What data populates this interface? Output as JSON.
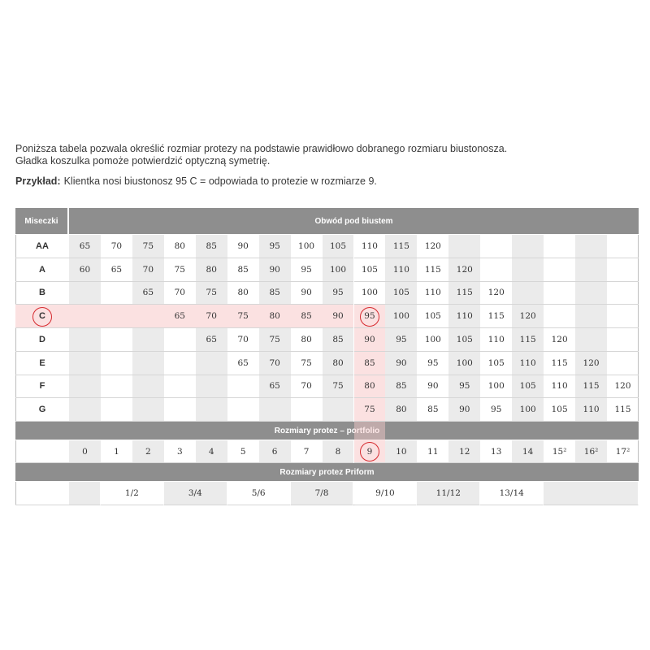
{
  "intro": {
    "line1": "Poniższa tabela pozwala określić rozmiar protezy na podstawie prawidłowo dobranego rozmiaru biustonosza.",
    "line2": "Gładka koszulka pomoże potwierdzić optyczną symetrię.",
    "example_label": "Przykład:",
    "example_text": "Klientka nosi biustonosz 95 C = odpowiada to protezie w rozmiarze 9."
  },
  "table": {
    "cup_header": "Miseczki",
    "band_header": "Obwód pod biustem",
    "rows": [
      {
        "cup": "AA",
        "values": [
          65,
          70,
          75,
          80,
          85,
          90,
          95,
          100,
          105,
          110,
          115,
          120,
          null,
          null,
          null,
          null,
          null,
          null
        ]
      },
      {
        "cup": "A",
        "values": [
          60,
          65,
          70,
          75,
          80,
          85,
          90,
          95,
          100,
          105,
          110,
          115,
          120,
          null,
          null,
          null,
          null,
          null
        ]
      },
      {
        "cup": "B",
        "values": [
          null,
          null,
          65,
          70,
          75,
          80,
          85,
          90,
          95,
          100,
          105,
          110,
          115,
          120,
          null,
          null,
          null,
          null
        ]
      },
      {
        "cup": "C",
        "values": [
          null,
          null,
          null,
          65,
          70,
          75,
          80,
          85,
          90,
          95,
          100,
          105,
          110,
          115,
          120,
          null,
          null,
          null
        ]
      },
      {
        "cup": "D",
        "values": [
          null,
          null,
          null,
          null,
          65,
          70,
          75,
          80,
          85,
          90,
          95,
          100,
          105,
          110,
          115,
          120,
          null,
          null
        ]
      },
      {
        "cup": "E",
        "values": [
          null,
          null,
          null,
          null,
          null,
          65,
          70,
          75,
          80,
          85,
          90,
          95,
          100,
          105,
          110,
          115,
          120,
          null
        ]
      },
      {
        "cup": "F",
        "values": [
          null,
          null,
          null,
          null,
          null,
          null,
          65,
          70,
          75,
          80,
          85,
          90,
          95,
          100,
          105,
          110,
          115,
          120
        ]
      },
      {
        "cup": "G",
        "values": [
          null,
          null,
          null,
          null,
          null,
          null,
          null,
          null,
          null,
          75,
          80,
          85,
          90,
          95,
          100,
          105,
          110,
          115
        ]
      }
    ],
    "portfolio_header": "Rozmiary protez – portfolio",
    "portfolio": [
      0,
      1,
      2,
      3,
      4,
      5,
      6,
      7,
      8,
      9,
      10,
      11,
      12,
      13,
      14,
      "15²",
      "16²",
      "17²"
    ],
    "priform_header": "Rozmiary protez Priform",
    "priform": [
      null,
      "1/2",
      "3/4",
      "5/6",
      "7/8",
      "9/10",
      "11/12",
      "13/14",
      null
    ]
  }
}
